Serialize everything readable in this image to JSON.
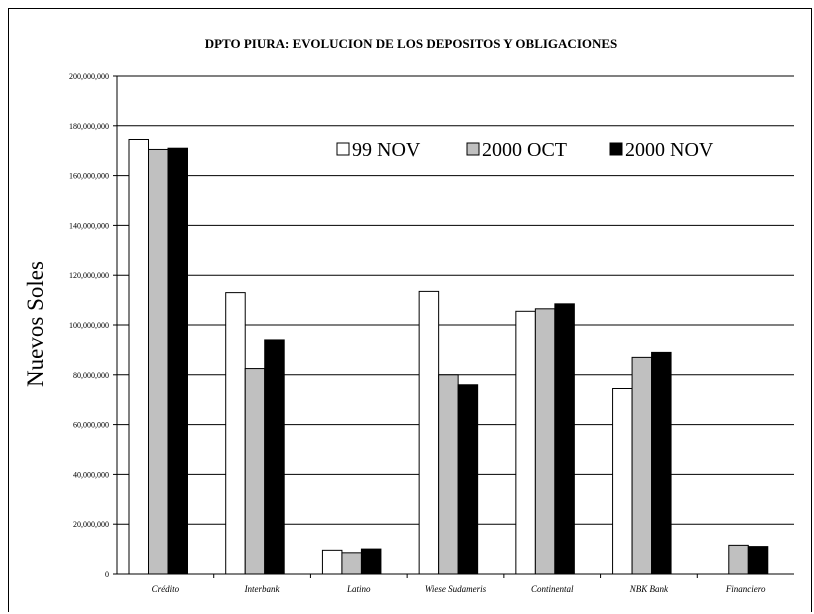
{
  "chart_data": {
    "type": "bar",
    "title": "DPTO PIURA: EVOLUCION DE LOS DEPOSITOS Y OBLIGACIONES",
    "xlabel": "",
    "ylabel": "Nuevos Soles",
    "ylim": [
      0,
      200000000
    ],
    "yticks": [
      0,
      20000000,
      40000000,
      60000000,
      80000000,
      100000000,
      120000000,
      140000000,
      160000000,
      180000000,
      200000000
    ],
    "ytick_labels": [
      "0",
      "20,000,000",
      "40,000,000",
      "60,000,000",
      "80,000,000",
      "100,000,000",
      "120,000,000",
      "140,000,000",
      "160,000,000",
      "180,000,000",
      "200,000,000"
    ],
    "grid": true,
    "legend_position": "top-right",
    "categories": [
      "Crédito",
      "Interbank",
      "Latino",
      "Wiese Sudameris",
      "Continental",
      "NBK Bank",
      "Financiero"
    ],
    "series": [
      {
        "name": "99 NOV",
        "color": "#ffffff",
        "values": [
          174500000,
          113000000,
          9500000,
          113500000,
          105500000,
          74500000,
          0
        ]
      },
      {
        "name": "2000 OCT",
        "color": "#c0c0c0",
        "values": [
          170500000,
          82500000,
          8500000,
          80000000,
          106500000,
          87000000,
          11500000
        ]
      },
      {
        "name": "2000 NOV",
        "color": "#000000",
        "values": [
          171000000,
          94000000,
          10000000,
          76000000,
          108500000,
          89000000,
          11000000
        ]
      }
    ]
  }
}
